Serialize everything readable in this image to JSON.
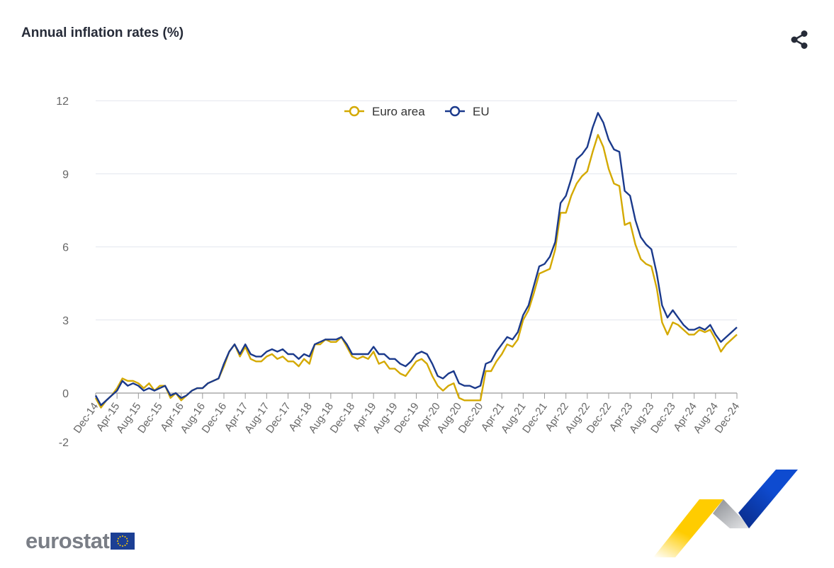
{
  "header": {
    "title": "Annual inflation rates (%)",
    "share_icon": "share-icon"
  },
  "logo": {
    "text": "eurostat",
    "flag_icon": "eu-flag-icon"
  },
  "chart_data": {
    "type": "line",
    "title": "Annual inflation rates (%)",
    "xlabel": "",
    "ylabel": "",
    "ylim": [
      -2,
      12
    ],
    "yticks": [
      -2,
      0,
      3,
      6,
      9,
      12
    ],
    "grid": true,
    "legend_position": "top-center",
    "x_tick_labels": [
      "Dec-14",
      "Apr-15",
      "Aug-15",
      "Dec-15",
      "Apr-16",
      "Aug-16",
      "Dec-16",
      "Apr-17",
      "Aug-17",
      "Dec-17",
      "Apr-18",
      "Aug-18",
      "Dec-18",
      "Apr-19",
      "Aug-19",
      "Dec-19",
      "Apr-20",
      "Aug-20",
      "Dec-20",
      "Apr-21",
      "Aug-21",
      "Dec-21",
      "Apr-22",
      "Aug-22",
      "Dec-22",
      "Apr-23",
      "Aug-23",
      "Dec-23",
      "Apr-24",
      "Aug-24",
      "Dec-24"
    ],
    "x_start": "Dec-14",
    "x_end": "Dec-24",
    "frequency": "monthly",
    "series": [
      {
        "name": "Euro area",
        "color": "#d4a900",
        "values": [
          -0.2,
          -0.6,
          -0.3,
          -0.1,
          0.2,
          0.6,
          0.5,
          0.5,
          0.4,
          0.2,
          0.4,
          0.1,
          0.3,
          0.3,
          -0.2,
          0.0,
          -0.3,
          -0.1,
          0.1,
          0.2,
          0.2,
          0.4,
          0.5,
          0.6,
          1.1,
          1.7,
          2.0,
          1.5,
          1.9,
          1.4,
          1.3,
          1.3,
          1.5,
          1.6,
          1.4,
          1.5,
          1.3,
          1.3,
          1.1,
          1.4,
          1.2,
          2.0,
          2.0,
          2.2,
          2.1,
          2.1,
          2.3,
          1.9,
          1.5,
          1.4,
          1.5,
          1.4,
          1.7,
          1.2,
          1.3,
          1.0,
          1.0,
          0.8,
          0.7,
          1.0,
          1.3,
          1.4,
          1.2,
          0.7,
          0.3,
          0.1,
          0.3,
          0.4,
          -0.2,
          -0.3,
          -0.3,
          -0.3,
          -0.3,
          0.9,
          0.9,
          1.3,
          1.6,
          2.0,
          1.9,
          2.2,
          3.0,
          3.4,
          4.1,
          4.9,
          5.0,
          5.1,
          5.9,
          7.4,
          7.4,
          8.1,
          8.6,
          8.9,
          9.1,
          9.9,
          10.6,
          10.1,
          9.2,
          8.6,
          8.5,
          6.9,
          7.0,
          6.1,
          5.5,
          5.3,
          5.2,
          4.3,
          2.9,
          2.4,
          2.9,
          2.8,
          2.6,
          2.4,
          2.4,
          2.6,
          2.5,
          2.6,
          2.2,
          1.7,
          2.0,
          2.2,
          2.4
        ]
      },
      {
        "name": "EU",
        "color": "#1b3a8c",
        "values": [
          -0.1,
          -0.5,
          -0.3,
          -0.1,
          0.1,
          0.5,
          0.3,
          0.4,
          0.3,
          0.1,
          0.2,
          0.1,
          0.2,
          0.3,
          -0.1,
          0.0,
          -0.2,
          -0.1,
          0.1,
          0.2,
          0.2,
          0.4,
          0.5,
          0.6,
          1.2,
          1.7,
          2.0,
          1.6,
          2.0,
          1.6,
          1.5,
          1.5,
          1.7,
          1.8,
          1.7,
          1.8,
          1.6,
          1.6,
          1.4,
          1.6,
          1.5,
          2.0,
          2.1,
          2.2,
          2.2,
          2.2,
          2.3,
          2.0,
          1.6,
          1.6,
          1.6,
          1.6,
          1.9,
          1.6,
          1.6,
          1.4,
          1.4,
          1.2,
          1.1,
          1.3,
          1.6,
          1.7,
          1.6,
          1.2,
          0.7,
          0.6,
          0.8,
          0.9,
          0.4,
          0.3,
          0.3,
          0.2,
          0.3,
          1.2,
          1.3,
          1.7,
          2.0,
          2.3,
          2.2,
          2.5,
          3.2,
          3.6,
          4.4,
          5.2,
          5.3,
          5.6,
          6.2,
          7.8,
          8.1,
          8.8,
          9.6,
          9.8,
          10.1,
          10.9,
          11.5,
          11.1,
          10.4,
          10.0,
          9.9,
          8.3,
          8.1,
          7.1,
          6.4,
          6.1,
          5.9,
          4.9,
          3.6,
          3.1,
          3.4,
          3.1,
          2.8,
          2.6,
          2.6,
          2.7,
          2.6,
          2.8,
          2.4,
          2.1,
          2.3,
          2.5,
          2.7
        ]
      }
    ]
  }
}
